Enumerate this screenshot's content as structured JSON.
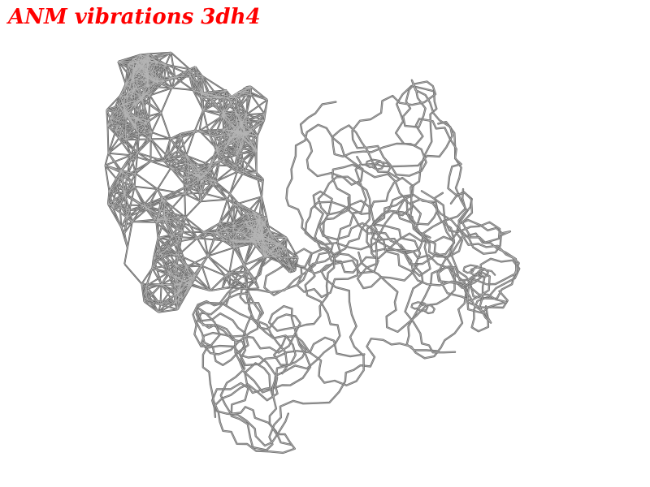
{
  "title": {
    "text": "ANM vibrations 3dh4",
    "color": "#ff0000"
  },
  "scene": {
    "background": "#ffffff",
    "wire_color": "#6e6e6e",
    "wire_highlight": "#b4b4b4",
    "mesh_color": "#5e5e5e"
  }
}
